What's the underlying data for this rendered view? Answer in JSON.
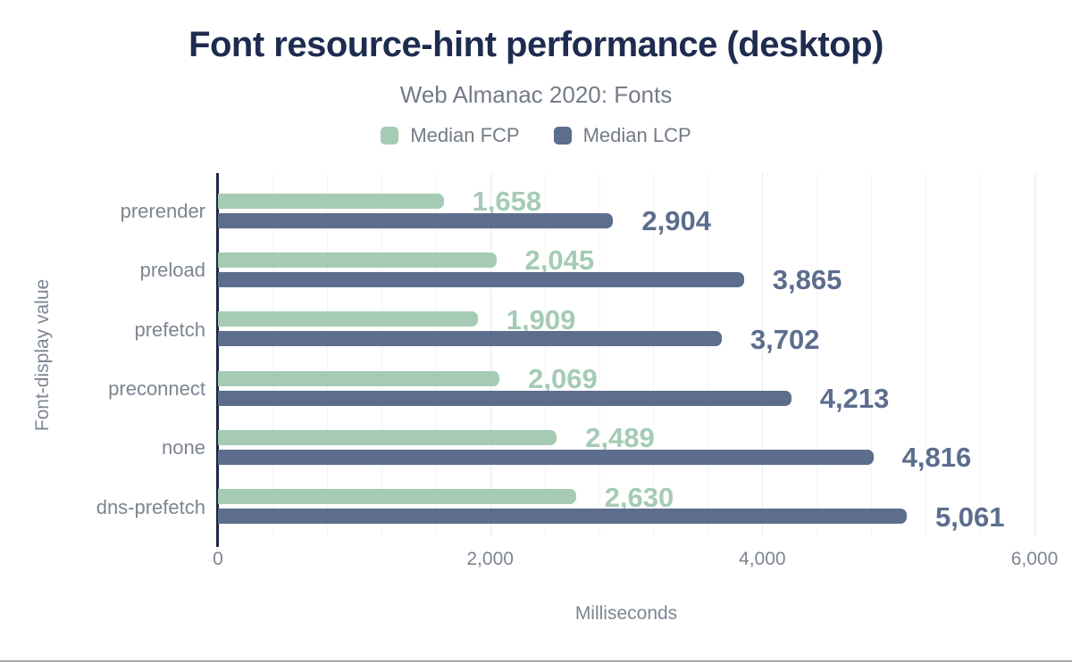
{
  "theme": {
    "title_color": "#1e2c4f",
    "subtitle_color": "#747b86",
    "label_gray": "#7d8591",
    "axis_color": "#1b2744",
    "grid_minor_color": "#f3f4f6",
    "grid_major_color": "#e6e9ed",
    "background": "#ffffff",
    "frame_line_color": "#a9abae"
  },
  "chart_data": {
    "type": "bar",
    "orientation": "horizontal",
    "title": "Font resource-hint performance (desktop)",
    "subtitle": "Web Almanac 2020: Fonts",
    "categories": [
      "prerender",
      "preload",
      "prefetch",
      "preconnect",
      "none",
      "dns-prefetch"
    ],
    "series": [
      {
        "name": "Median FCP",
        "color": "#a5cbb5",
        "values": [
          1658,
          2045,
          1909,
          2069,
          2489,
          2630
        ],
        "display_values": [
          "1,658",
          "2,045",
          "1,909",
          "2,069",
          "2,489",
          "2,630"
        ]
      },
      {
        "name": "Median LCP",
        "color": "#5c6d8d",
        "values": [
          2904,
          3865,
          3702,
          4213,
          4816,
          5061
        ],
        "display_values": [
          "2,904",
          "3,865",
          "3,702",
          "4,213",
          "4,816",
          "5,061"
        ]
      }
    ],
    "xlabel": "Milliseconds",
    "ylabel": "Font-display value",
    "xlim": [
      0,
      6000
    ],
    "xticks": [
      0,
      2000,
      4000,
      6000
    ],
    "xtick_labels": [
      "0",
      "2,000",
      "4,000",
      "6,000"
    ],
    "minor_grid_step": 400,
    "grid": true,
    "legend_position": "top-center"
  }
}
